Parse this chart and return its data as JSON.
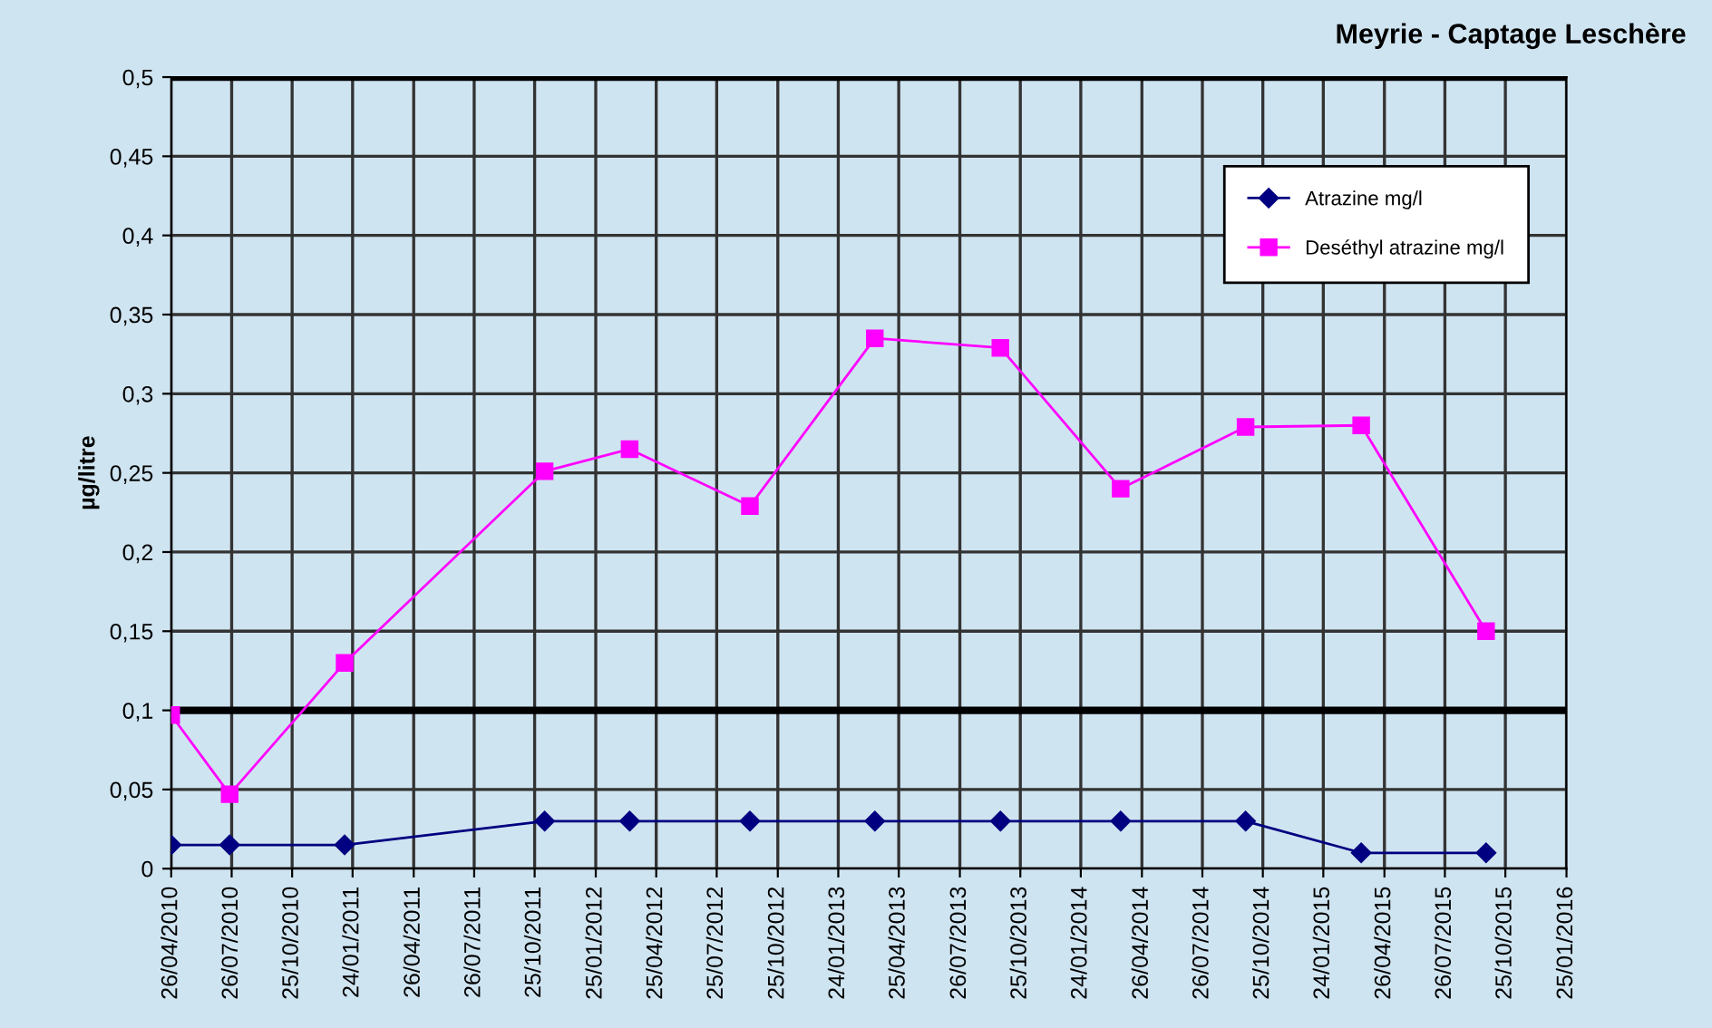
{
  "chart_data": {
    "type": "line",
    "title": "Meyrie - Captage Leschère",
    "ylabel": "µg/litre",
    "series": [
      {
        "name": "Atrazine mg/l",
        "color": "#000080",
        "marker": "diamond",
        "x": [
          "2010-04-26",
          "2010-07-23",
          "2011-01-12",
          "2011-11-09",
          "2012-03-16",
          "2012-09-13",
          "2013-03-20",
          "2013-09-25",
          "2014-03-25",
          "2014-09-29",
          "2015-03-22",
          "2015-09-26"
        ],
        "values": [
          0.015,
          0.015,
          0.015,
          0.03,
          0.03,
          0.03,
          0.03,
          0.03,
          0.03,
          0.03,
          0.01,
          0.01
        ]
      },
      {
        "name": "Deséthyl atrazine mg/l",
        "color": "#ff00ff",
        "marker": "square",
        "x": [
          "2010-04-26",
          "2010-07-23",
          "2011-01-12",
          "2011-11-09",
          "2012-03-16",
          "2012-09-13",
          "2013-03-20",
          "2013-09-25",
          "2014-03-25",
          "2014-09-29",
          "2015-03-22",
          "2015-09-26"
        ],
        "values": [
          0.097,
          0.047,
          0.13,
          0.251,
          0.265,
          0.229,
          0.335,
          0.329,
          0.24,
          0.279,
          0.28,
          0.15
        ]
      }
    ],
    "xlim": [
      "2010-04-26",
      "2016-01-25"
    ],
    "xticks": [
      {
        "value": "2010-04-26",
        "label": "26/04/2010"
      },
      {
        "value": "2010-07-26",
        "label": "26/07/2010"
      },
      {
        "value": "2010-10-25",
        "label": "25/10/2010"
      },
      {
        "value": "2011-01-24",
        "label": "24/01/2011"
      },
      {
        "value": "2011-04-26",
        "label": "26/04/2011"
      },
      {
        "value": "2011-07-26",
        "label": "26/07/2011"
      },
      {
        "value": "2011-10-25",
        "label": "25/10/2011"
      },
      {
        "value": "2012-01-25",
        "label": "25/01/2012"
      },
      {
        "value": "2012-04-25",
        "label": "25/04/2012"
      },
      {
        "value": "2012-07-25",
        "label": "25/07/2012"
      },
      {
        "value": "2012-10-25",
        "label": "25/10/2012"
      },
      {
        "value": "2013-01-24",
        "label": "24/01/2013"
      },
      {
        "value": "2013-04-25",
        "label": "25/04/2013"
      },
      {
        "value": "2013-07-26",
        "label": "26/07/2013"
      },
      {
        "value": "2013-10-25",
        "label": "25/10/2013"
      },
      {
        "value": "2014-01-24",
        "label": "24/01/2014"
      },
      {
        "value": "2014-04-26",
        "label": "26/04/2014"
      },
      {
        "value": "2014-07-26",
        "label": "26/07/2014"
      },
      {
        "value": "2014-10-25",
        "label": "25/10/2014"
      },
      {
        "value": "2015-01-24",
        "label": "24/01/2015"
      },
      {
        "value": "2015-04-26",
        "label": "26/04/2015"
      },
      {
        "value": "2015-07-26",
        "label": "26/07/2015"
      },
      {
        "value": "2015-10-25",
        "label": "25/10/2015"
      },
      {
        "value": "2016-01-25",
        "label": "25/01/2016"
      }
    ],
    "ylim": [
      0,
      0.5
    ],
    "yticks": [
      0,
      {
        "value": 0.05,
        "label": "0,05"
      },
      {
        "value": 0.1,
        "label": "0,1"
      },
      {
        "value": 0.15,
        "label": "0,15"
      },
      {
        "value": 0.2,
        "label": "0,2"
      },
      {
        "value": 0.25,
        "label": "0,25"
      },
      {
        "value": 0.3,
        "label": "0,3"
      },
      {
        "value": 0.35,
        "label": "0,35"
      },
      {
        "value": 0.4,
        "label": "0,4"
      },
      {
        "value": 0.45,
        "label": "0,45"
      },
      {
        "value": 0.5,
        "label": "0,5"
      }
    ],
    "ref_lines": [
      {
        "axis": "y",
        "value": 0.1,
        "color": "#000000"
      },
      {
        "axis": "y",
        "value": 0.5,
        "color": "#000000"
      }
    ],
    "grid": true,
    "legend": "top right",
    "line_style": "solid"
  }
}
